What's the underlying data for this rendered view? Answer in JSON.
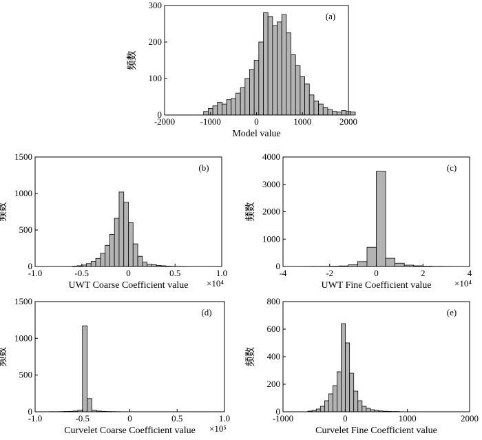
{
  "chart_data": [
    {
      "id": "a",
      "type": "bar",
      "tag": "(a)",
      "xlabel": "Model value",
      "ylabel": "频数",
      "xlim": [
        -2000,
        2000
      ],
      "ylim": [
        0,
        300
      ],
      "xticks": [
        -2000,
        -1000,
        0,
        1000,
        2000
      ],
      "xtick_labels": [
        "-2000",
        "-1000",
        "0",
        "1000",
        "2000"
      ],
      "yticks": [
        0,
        100,
        200,
        300
      ],
      "ytick_labels": [
        "0",
        "100",
        "200",
        "300"
      ],
      "multiplier": "",
      "bin_start": -1150,
      "bin_width": 100,
      "values": [
        10,
        18,
        25,
        35,
        30,
        42,
        45,
        60,
        75,
        100,
        125,
        150,
        200,
        280,
        270,
        245,
        255,
        275,
        225,
        165,
        135,
        105,
        85,
        55,
        38,
        30,
        20,
        15,
        10,
        8,
        12,
        10,
        8
      ]
    },
    {
      "id": "b",
      "type": "bar",
      "tag": "(b)",
      "xlabel": "UWT Coarse Coefficient value",
      "ylabel": "频数",
      "xlim": [
        -1.0,
        1.0
      ],
      "ylim": [
        0,
        1500
      ],
      "xticks": [
        -1.0,
        -0.5,
        0,
        0.5,
        1.0
      ],
      "xtick_labels": [
        "-1.0",
        "-0.5",
        "0",
        "0.5",
        "1.0"
      ],
      "yticks": [
        0,
        500,
        1000,
        1500
      ],
      "ytick_labels": [
        "0",
        "500",
        "1000",
        "1500"
      ],
      "multiplier": "×10⁴",
      "bin_start": -0.6,
      "bin_width": 0.05,
      "values": [
        5,
        10,
        20,
        40,
        70,
        110,
        180,
        290,
        440,
        660,
        1020,
        880,
        600,
        310,
        140,
        60,
        30,
        25,
        15,
        10,
        5,
        3,
        2,
        2
      ]
    },
    {
      "id": "c",
      "type": "bar",
      "tag": "(c)",
      "xlabel": "UWT Fine Coefficient value",
      "ylabel": "频数",
      "xlim": [
        -4,
        4
      ],
      "ylim": [
        0,
        4000
      ],
      "xticks": [
        -4,
        -2,
        0,
        2,
        4
      ],
      "xtick_labels": [
        "-4",
        "-2",
        "0",
        "2",
        "4"
      ],
      "yticks": [
        0,
        1000,
        2000,
        3000,
        4000
      ],
      "ytick_labels": [
        "0",
        "1000",
        "2000",
        "3000",
        "4000"
      ],
      "multiplier": "×10⁴",
      "bin_start": -4,
      "bin_width": 0.4,
      "values": [
        0,
        2,
        3,
        5,
        5,
        10,
        20,
        60,
        180,
        700,
        3480,
        300,
        120,
        50,
        25,
        12,
        6,
        4,
        2,
        2
      ]
    },
    {
      "id": "d",
      "type": "bar",
      "tag": "(d)",
      "xlabel": "Curvelet Coarse Coefficient value",
      "ylabel": "频数",
      "xlim": [
        -1.0,
        1.0
      ],
      "ylim": [
        0,
        1500
      ],
      "xticks": [
        -1.0,
        -0.5,
        0,
        0.5,
        1.0
      ],
      "xtick_labels": [
        "-1.0",
        "-0.5",
        "0",
        "0.5",
        "1.0"
      ],
      "yticks": [
        0,
        500,
        1000,
        1500
      ],
      "ytick_labels": [
        "0",
        "500",
        "1000",
        "1500"
      ],
      "multiplier": "×10⁵",
      "bin_start": -1.0,
      "bin_width": 0.05,
      "values": [
        0,
        1,
        1,
        2,
        2,
        3,
        5,
        6,
        10,
        20,
        1170,
        180,
        20,
        10,
        6,
        4,
        3,
        2,
        1,
        1,
        1,
        0,
        0,
        0,
        0,
        0,
        0,
        0,
        0,
        0,
        0,
        0,
        0,
        0,
        0,
        0,
        0,
        0,
        0,
        0
      ]
    },
    {
      "id": "e",
      "type": "bar",
      "tag": "(e)",
      "xlabel": "Curvelet Fine Coefficient value",
      "ylabel": "频数",
      "xlim": [
        -1000,
        2000
      ],
      "ylim": [
        0,
        800
      ],
      "xticks": [
        -1000,
        0,
        1000,
        2000
      ],
      "xtick_labels": [
        "-1000",
        "0",
        "1000",
        "2000"
      ],
      "yticks": [
        0,
        200,
        400,
        600,
        800
      ],
      "ytick_labels": [
        "0",
        "200",
        "400",
        "600",
        "800"
      ],
      "multiplier": "",
      "bin_start": -600,
      "bin_width": 67,
      "values": [
        5,
        10,
        20,
        40,
        80,
        130,
        190,
        290,
        640,
        500,
        280,
        150,
        80,
        40,
        25,
        15,
        10,
        6,
        4,
        3,
        2,
        2
      ]
    }
  ]
}
